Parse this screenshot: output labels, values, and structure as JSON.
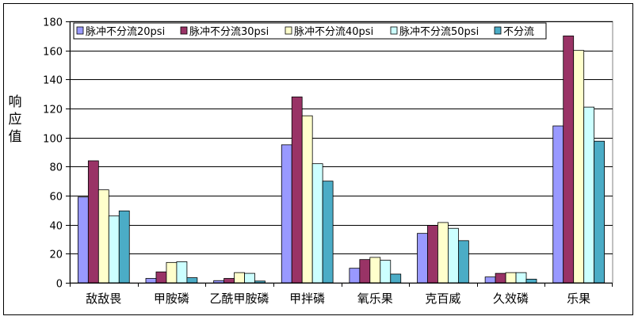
{
  "chart_data": {
    "type": "bar",
    "title": "",
    "xlabel": "",
    "ylabel": "响应值",
    "ylim": [
      0,
      180
    ],
    "yticks": [
      0,
      20,
      40,
      60,
      80,
      100,
      120,
      140,
      160,
      180
    ],
    "grid": true,
    "legend_position": "top",
    "categories": [
      "敌敌畏",
      "甲胺磷",
      "乙酰甲胺磷",
      "甲拌磷",
      "氧乐果",
      "克百威",
      "久效磷",
      "乐果"
    ],
    "series": [
      {
        "name": "脉冲不分流20psi",
        "color": "#9999ff",
        "values": [
          59,
          3,
          1.5,
          95,
          10,
          34,
          4,
          108
        ]
      },
      {
        "name": "脉冲不分流30psi",
        "color": "#993366",
        "values": [
          84,
          7.5,
          3,
          128,
          16,
          39.5,
          6.5,
          170
        ]
      },
      {
        "name": "脉冲不分流40psi",
        "color": "#ffffcc",
        "values": [
          64,
          14,
          7,
          115,
          17.5,
          41.5,
          7,
          160
        ]
      },
      {
        "name": "脉冲不分流50psi",
        "color": "#ccffff",
        "values": [
          46,
          14.5,
          6.5,
          82,
          15.5,
          37.5,
          7,
          121
        ]
      },
      {
        "name": "不分流",
        "color": "#4bacc6",
        "values": [
          49.5,
          3.5,
          1.2,
          70,
          6,
          29,
          2.5,
          97.5
        ]
      }
    ]
  }
}
